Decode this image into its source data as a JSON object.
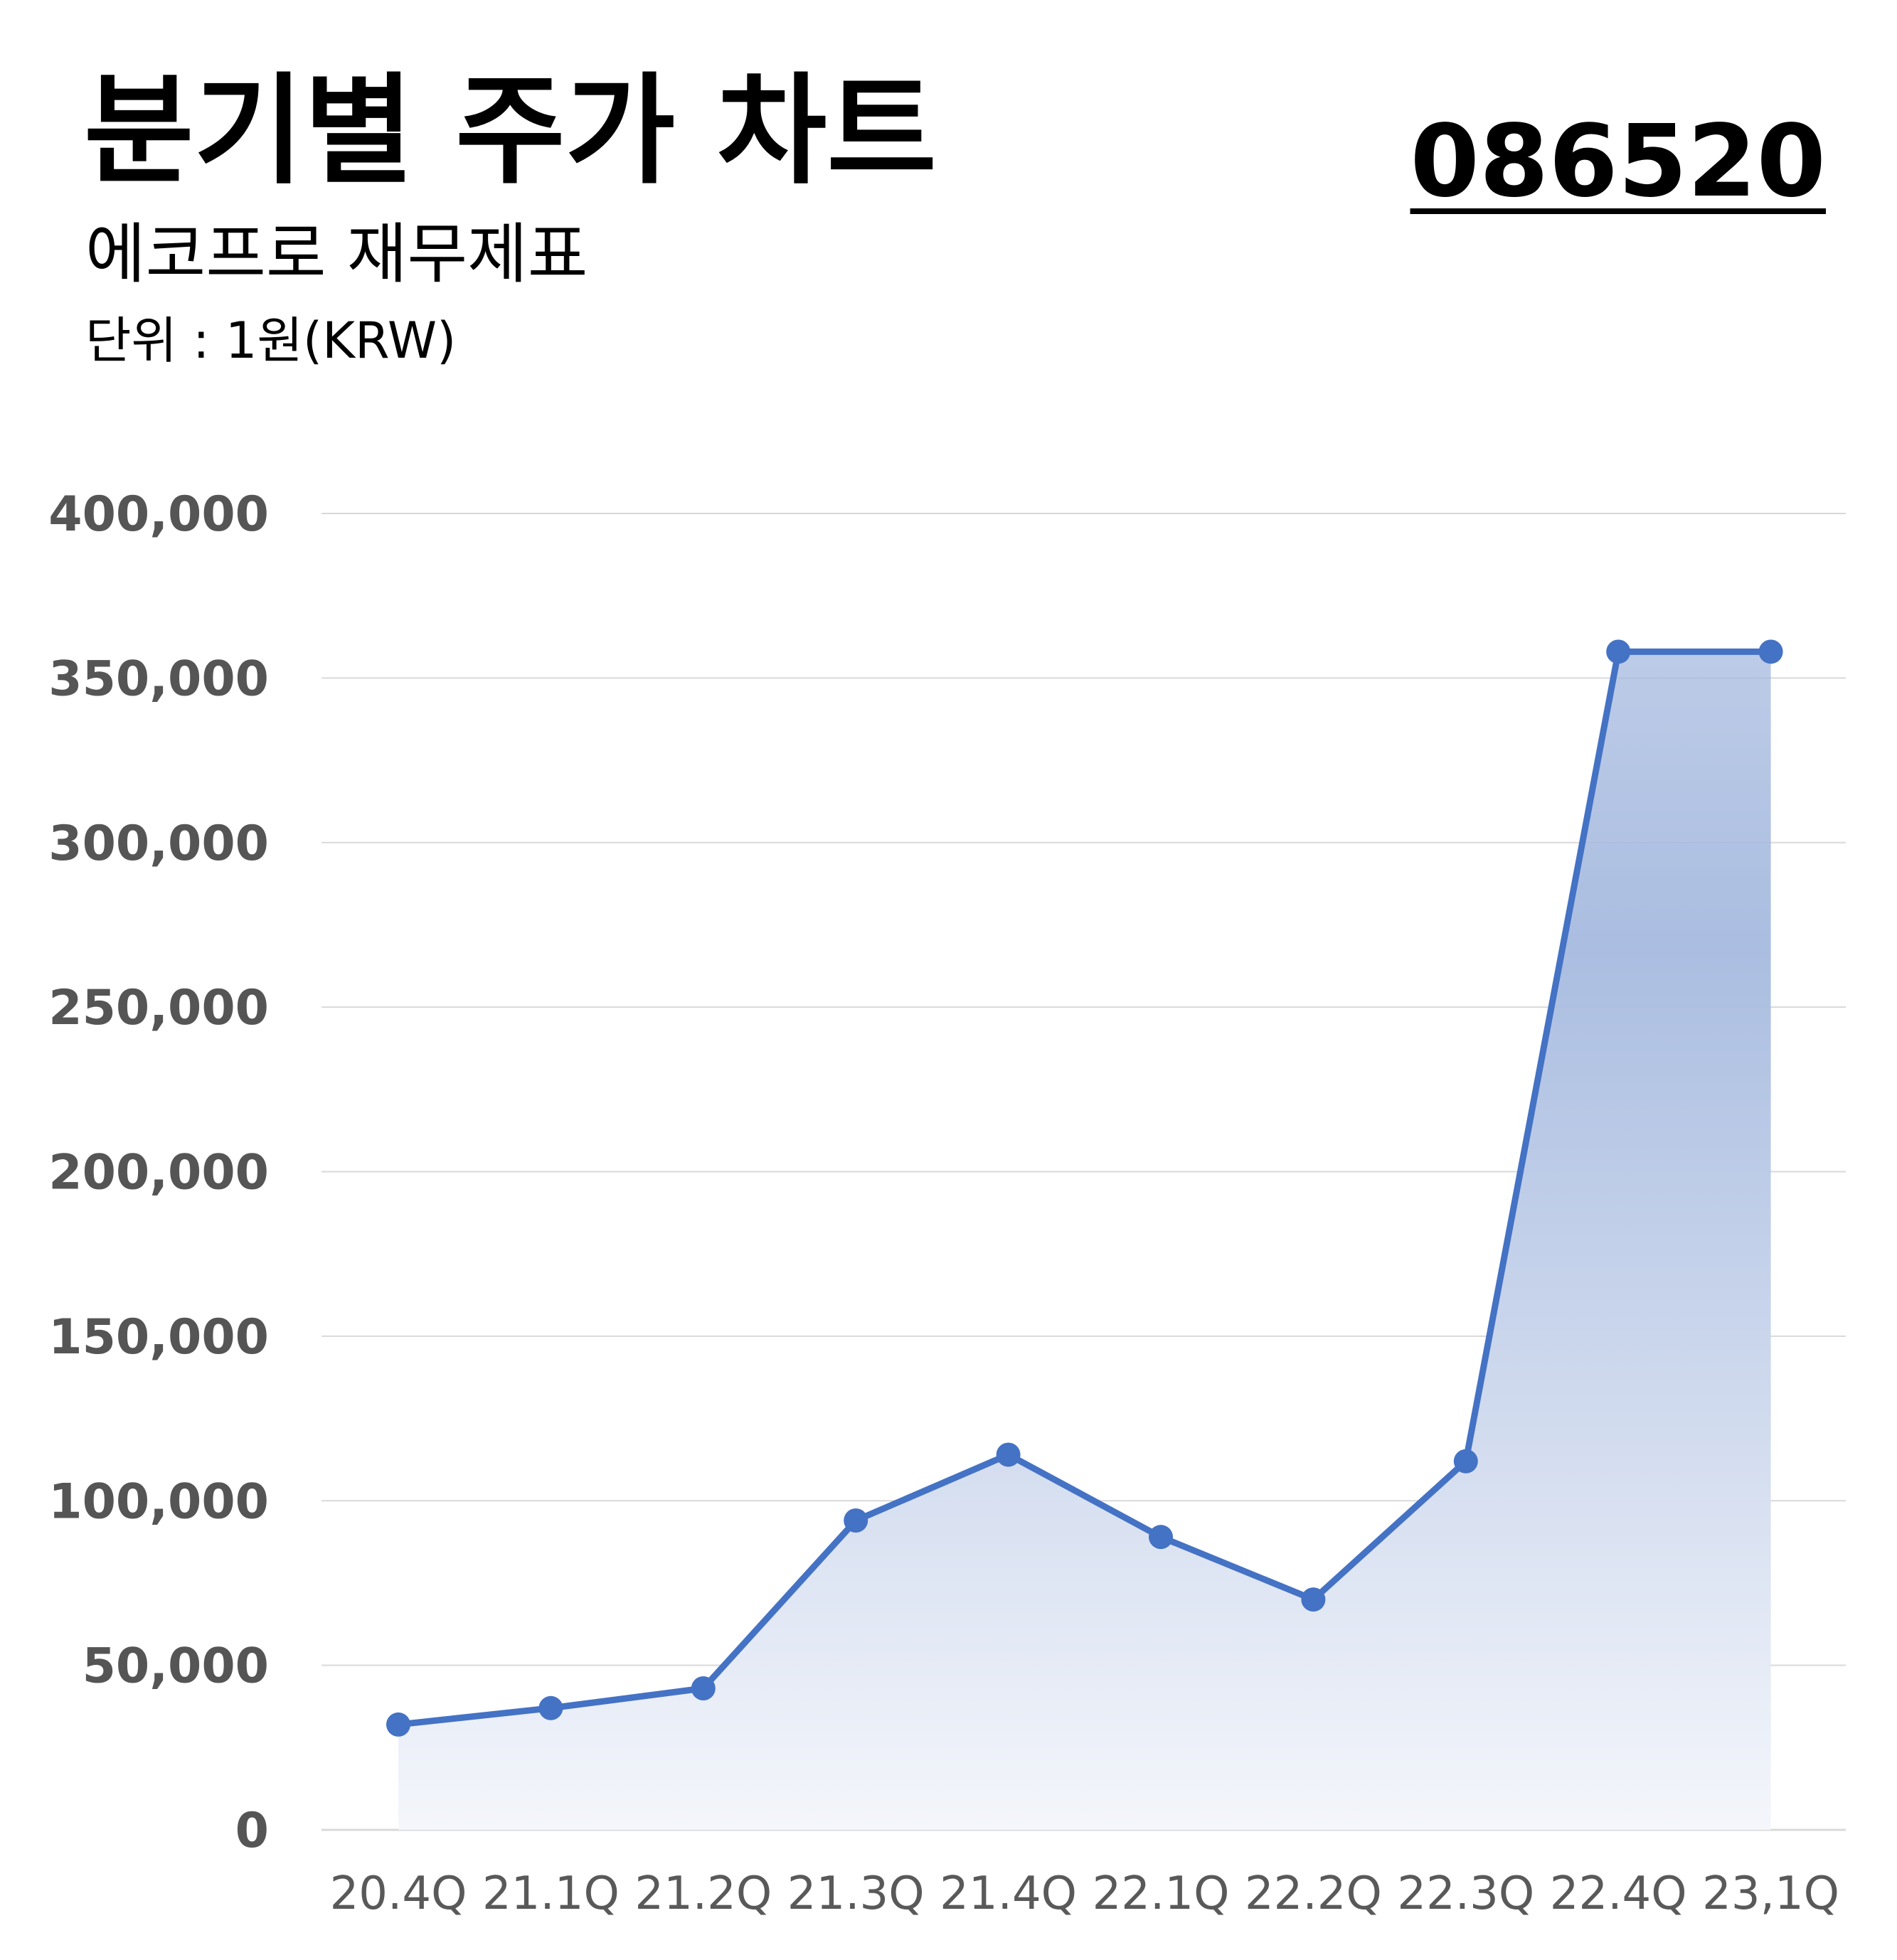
{
  "header": {
    "title": "분기별 주가 차트",
    "subtitle": "에코프로 재무제표",
    "unit": "단위 : 1원(KRW)",
    "ticker": "086520"
  },
  "colors": {
    "line": "#4472c4",
    "fill_top": "#a6badf",
    "fill_bottom": "#f4f6fb",
    "grid": "#d9d9d9"
  },
  "chart_data": {
    "type": "area",
    "categories": [
      "20.4Q",
      "21.1Q",
      "21.2Q",
      "21.3Q",
      "21.4Q",
      "22.1Q",
      "22.2Q",
      "22.3Q",
      "22.4Q",
      "23,1Q"
    ],
    "values": [
      32000,
      37000,
      43000,
      94000,
      114000,
      89000,
      70000,
      112000,
      358000,
      358000
    ],
    "ylim": [
      0,
      400000
    ],
    "yticks": [
      0,
      50000,
      100000,
      150000,
      200000,
      250000,
      300000,
      350000,
      400000
    ],
    "ytick_labels": [
      "0",
      "50,000",
      "100,000",
      "150,000",
      "200,000",
      "250,000",
      "300,000",
      "350,000",
      "400,000"
    ],
    "grid": true,
    "legend": "none"
  }
}
